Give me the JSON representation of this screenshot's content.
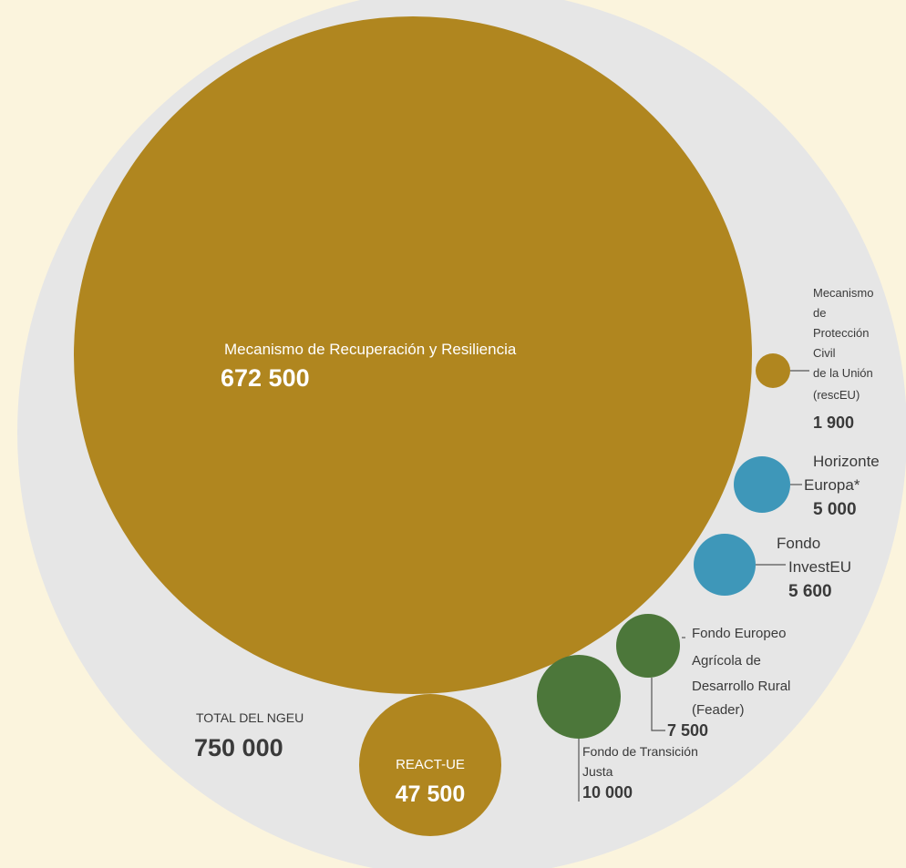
{
  "chart_data": {
    "type": "bubble",
    "total": {
      "label": "TOTAL DEL NGEU",
      "value_label": "750 000",
      "value": 750000
    },
    "bubbles": [
      {
        "id": "mrr",
        "label_lines": [
          "Mecanismo de Recuperación y Resiliencia"
        ],
        "value_label": "672 500",
        "value": 672500,
        "group": "gold"
      },
      {
        "id": "react",
        "label_lines": [
          "REACT-UE"
        ],
        "value_label": "47 500",
        "value": 47500,
        "group": "gold"
      },
      {
        "id": "ftj",
        "label_lines": [
          "Fondo de Transición",
          "Justa"
        ],
        "value_label": "10 000",
        "value": 10000,
        "group": "green"
      },
      {
        "id": "feader",
        "label_lines": [
          "Fondo Europeo",
          "Agrícola de",
          "Desarrollo Rural",
          "(Feader)"
        ],
        "value_label": "7 500",
        "value": 7500,
        "group": "green"
      },
      {
        "id": "investeu",
        "label_lines": [
          "Fondo",
          "InvestEU"
        ],
        "value_label": "5 600",
        "value": 5600,
        "group": "blue"
      },
      {
        "id": "horizonte",
        "label_lines": [
          "Horizonte",
          "Europa*"
        ],
        "value_label": "5 000",
        "value": 5000,
        "group": "blue"
      },
      {
        "id": "resceu",
        "label_lines": [
          "Mecanismo",
          "de",
          "Protección",
          "Civil",
          "de la Unión",
          "(rescEU)"
        ],
        "value_label": "1 900",
        "value": 1900,
        "group": "gold"
      }
    ]
  },
  "colors": {
    "background": "#fbf4dd",
    "total_circle": "#e6e6e6",
    "gold": "#b0861f",
    "green": "#4c773a",
    "blue": "#3e97b9"
  }
}
